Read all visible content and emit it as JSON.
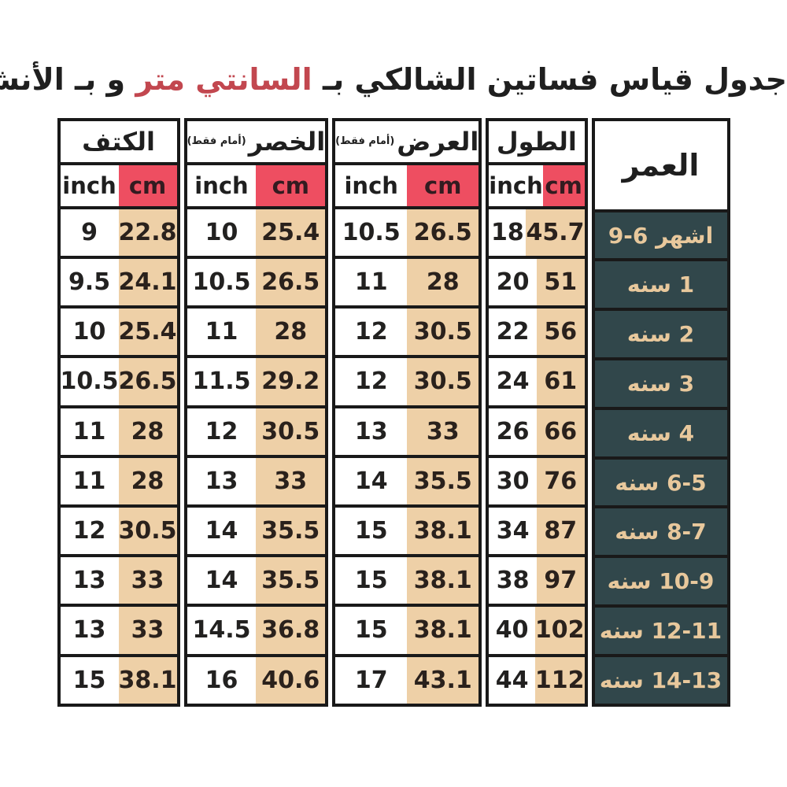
{
  "title": {
    "text_before": "جدول قياس فساتين الشالكي بـ",
    "text_highlight": "السانتي متر",
    "text_after": "و بـ الأنش"
  },
  "colors": {
    "title_highlight": "#c2474f",
    "cm_header_bg": "#ee4e61",
    "cm_cell_bg": "#eed0a7",
    "age_cell_bg": "#31474b",
    "age_text": "#e8c89c",
    "border": "#191919"
  },
  "table": {
    "age_header": "العمر",
    "units": {
      "inch": "inch",
      "cm": "cm"
    },
    "groups": [
      {
        "id": "shoulder",
        "label": "الكتف",
        "note": ""
      },
      {
        "id": "waist",
        "label": "الخصر",
        "note": "(أمام فقط)"
      },
      {
        "id": "width",
        "label": "العرض",
        "note": "(أمام فقط)"
      },
      {
        "id": "length",
        "label": "الطول",
        "note": ""
      }
    ],
    "rows": [
      {
        "age": "اشهر 6-9",
        "shoulder": {
          "inch": "9",
          "cm": "22.8"
        },
        "waist": {
          "inch": "10",
          "cm": "25.4"
        },
        "width": {
          "inch": "10.5",
          "cm": "26.5"
        },
        "length": {
          "inch": "18",
          "cm": "45.7"
        }
      },
      {
        "age": "1 سنه",
        "shoulder": {
          "inch": "9.5",
          "cm": "24.1"
        },
        "waist": {
          "inch": "10.5",
          "cm": "26.5"
        },
        "width": {
          "inch": "11",
          "cm": "28"
        },
        "length": {
          "inch": "20",
          "cm": "51"
        }
      },
      {
        "age": "2 سنه",
        "shoulder": {
          "inch": "10",
          "cm": "25.4"
        },
        "waist": {
          "inch": "11",
          "cm": "28"
        },
        "width": {
          "inch": "12",
          "cm": "30.5"
        },
        "length": {
          "inch": "22",
          "cm": "56"
        }
      },
      {
        "age": "3 سنه",
        "shoulder": {
          "inch": "10.5",
          "cm": "26.5"
        },
        "waist": {
          "inch": "11.5",
          "cm": "29.2"
        },
        "width": {
          "inch": "12",
          "cm": "30.5"
        },
        "length": {
          "inch": "24",
          "cm": "61"
        }
      },
      {
        "age": "4 سنه",
        "shoulder": {
          "inch": "11",
          "cm": "28"
        },
        "waist": {
          "inch": "12",
          "cm": "30.5"
        },
        "width": {
          "inch": "13",
          "cm": "33"
        },
        "length": {
          "inch": "26",
          "cm": "66"
        }
      },
      {
        "age": "6-5 سنه",
        "shoulder": {
          "inch": "11",
          "cm": "28"
        },
        "waist": {
          "inch": "13",
          "cm": "33"
        },
        "width": {
          "inch": "14",
          "cm": "35.5"
        },
        "length": {
          "inch": "30",
          "cm": "76"
        }
      },
      {
        "age": "8-7 سنه",
        "shoulder": {
          "inch": "12",
          "cm": "30.5"
        },
        "waist": {
          "inch": "14",
          "cm": "35.5"
        },
        "width": {
          "inch": "15",
          "cm": "38.1"
        },
        "length": {
          "inch": "34",
          "cm": "87"
        }
      },
      {
        "age": "10-9 سنه",
        "shoulder": {
          "inch": "13",
          "cm": "33"
        },
        "waist": {
          "inch": "14",
          "cm": "35.5"
        },
        "width": {
          "inch": "15",
          "cm": "38.1"
        },
        "length": {
          "inch": "38",
          "cm": "97"
        }
      },
      {
        "age": "12-11 سنه",
        "shoulder": {
          "inch": "13",
          "cm": "33"
        },
        "waist": {
          "inch": "14.5",
          "cm": "36.8"
        },
        "width": {
          "inch": "15",
          "cm": "38.1"
        },
        "length": {
          "inch": "40",
          "cm": "102"
        }
      },
      {
        "age": "14-13 سنه",
        "shoulder": {
          "inch": "15",
          "cm": "38.1"
        },
        "waist": {
          "inch": "16",
          "cm": "40.6"
        },
        "width": {
          "inch": "17",
          "cm": "43.1"
        },
        "length": {
          "inch": "44",
          "cm": "112"
        }
      }
    ]
  },
  "chart_data": {
    "type": "table",
    "title": "جدول قياس فساتين الشالكي بـ السانتي متر و بـ الأنش",
    "columns": [
      "العمر",
      "الطول inch",
      "الطول cm",
      "العرض (أمام فقط) inch",
      "العرض (أمام فقط) cm",
      "الخصر (أمام فقط) inch",
      "الخصر (أمام فقط) cm",
      "الكتف inch",
      "الكتف cm"
    ],
    "rows": [
      [
        "6-9 اشهر",
        18,
        45.7,
        10.5,
        26.5,
        10,
        25.4,
        9,
        22.8
      ],
      [
        "1 سنه",
        20,
        51,
        11,
        28,
        10.5,
        26.5,
        9.5,
        24.1
      ],
      [
        "2 سنه",
        22,
        56,
        12,
        30.5,
        11,
        28,
        10,
        25.4
      ],
      [
        "3 سنه",
        24,
        61,
        12,
        30.5,
        11.5,
        29.2,
        10.5,
        26.5
      ],
      [
        "4 سنه",
        26,
        66,
        13,
        33,
        12,
        30.5,
        11,
        28
      ],
      [
        "5-6 سنه",
        30,
        76,
        14,
        35.5,
        13,
        33,
        11,
        28
      ],
      [
        "7-8 سنه",
        34,
        87,
        15,
        38.1,
        14,
        35.5,
        12,
        30.5
      ],
      [
        "9-10 سنه",
        38,
        97,
        15,
        38.1,
        14,
        35.5,
        13,
        33
      ],
      [
        "11-12 سنه",
        40,
        102,
        15,
        38.1,
        14.5,
        36.8,
        13,
        33
      ],
      [
        "13-14 سنه",
        44,
        112,
        17,
        43.1,
        16,
        40.6,
        15,
        38.1
      ]
    ]
  }
}
